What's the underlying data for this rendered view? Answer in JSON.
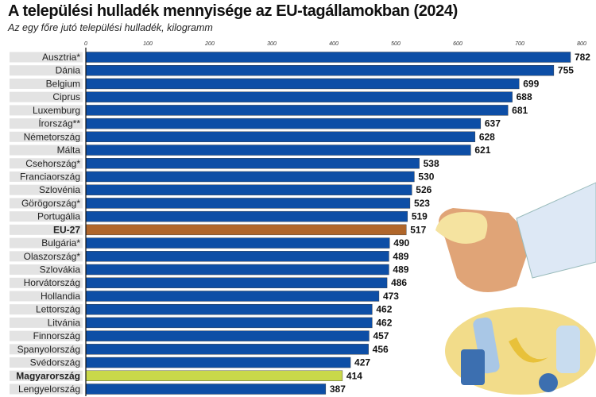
{
  "title": "A települési hulladék mennyisége az EU-tagállamokban (2024)",
  "subtitle": "Az egy főre jutó települési hulladék, kilogramm",
  "chart_data": {
    "type": "bar",
    "orientation": "horizontal",
    "title": "A települési hulladék mennyisége az EU-tagállamokban (2024)",
    "subtitle": "Az egy főre jutó települési hulladék, kilogramm",
    "xlim": [
      0,
      800
    ],
    "ticks": [
      0,
      100,
      200,
      300,
      400,
      500,
      600,
      700,
      800
    ],
    "categories": [
      "Ausztria*",
      "Dánia",
      "Belgium",
      "Ciprus",
      "Luxemburg",
      "Írország**",
      "Németország",
      "Málta",
      "Csehország*",
      "Franciaország",
      "Szlovénia",
      "Görögország*",
      "Portugália",
      "EU-27",
      "Bulgária*",
      "Olaszország*",
      "Szlovákia",
      "Horvátország",
      "Hollandia",
      "Lettország",
      "Litvánia",
      "Finnország",
      "Spanyolország",
      "Svédország",
      "Magyarország",
      "Lengyelország"
    ],
    "values": [
      782,
      755,
      699,
      688,
      681,
      637,
      628,
      621,
      538,
      530,
      526,
      523,
      519,
      517,
      490,
      489,
      489,
      486,
      473,
      462,
      462,
      457,
      456,
      427,
      414,
      387
    ],
    "highlight": {
      "EU-27": "#b0662a",
      "Magyarország": "#c9d84a"
    },
    "bold_labels": [
      "EU-27",
      "Magyarország"
    ],
    "default_color": "#0d4ea6",
    "grid": false
  }
}
